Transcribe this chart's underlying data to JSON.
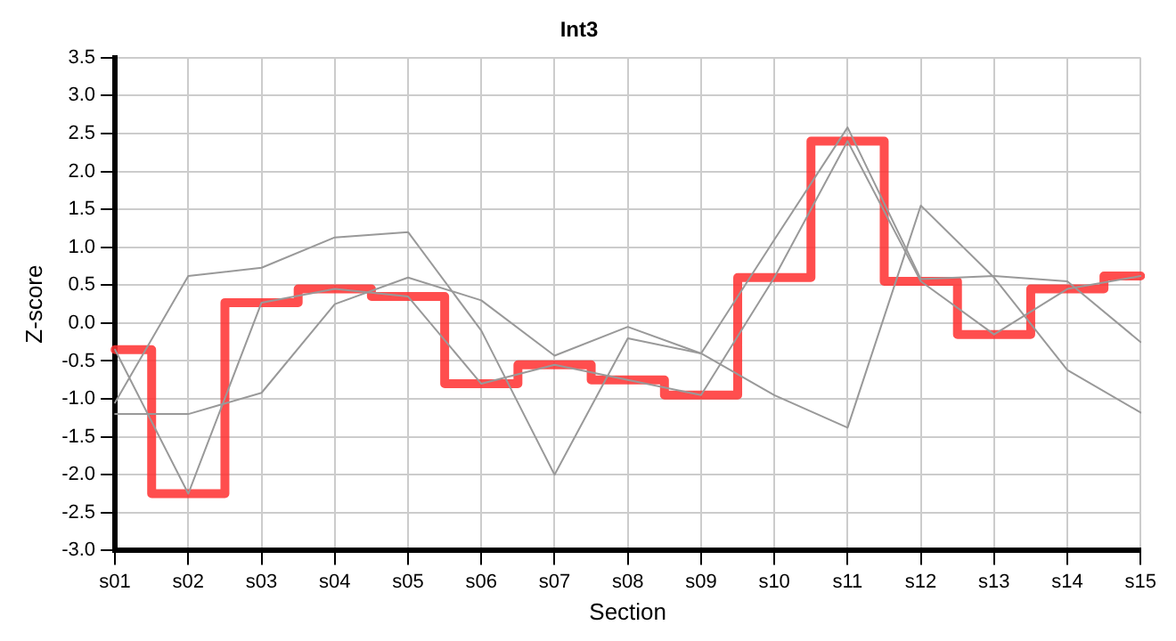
{
  "chart_data": {
    "type": "line",
    "title": "Int3",
    "xlabel": "Section",
    "ylabel": "Z-score",
    "categories": [
      "s01",
      "s02",
      "s03",
      "s04",
      "s05",
      "s06",
      "s07",
      "s08",
      "s09",
      "s10",
      "s11",
      "s12",
      "s13",
      "s14",
      "s15"
    ],
    "series": [
      {
        "color": "#999999",
        "values": [
          -1.2,
          -1.2,
          -0.92,
          0.25,
          0.6,
          0.3,
          -0.43,
          -0.05,
          -0.4,
          -0.95,
          -1.38,
          1.55,
          0.6,
          -0.62,
          -1.18
        ]
      },
      {
        "color": "#999999",
        "values": [
          -1.05,
          0.62,
          0.73,
          1.13,
          1.2,
          -0.1,
          -2.0,
          -0.2,
          -0.4,
          1.1,
          2.58,
          0.58,
          0.62,
          0.55,
          -0.25
        ]
      },
      {
        "color": "#999999",
        "values": [
          -0.35,
          -2.25,
          0.27,
          0.45,
          0.35,
          -0.8,
          -0.55,
          -0.75,
          -0.95,
          0.6,
          2.4,
          0.55,
          -0.15,
          0.45,
          0.62
        ]
      },
      {
        "type": "step",
        "color": "#ff3333",
        "values": [
          -0.35,
          -2.25,
          0.27,
          0.45,
          0.35,
          -0.8,
          -0.55,
          -0.75,
          -0.95,
          0.6,
          2.4,
          0.55,
          -0.15,
          0.45,
          0.62
        ]
      }
    ],
    "ylim": [
      -3,
      3.5
    ],
    "yticks": [
      {
        "value": -3,
        "label": "-3.0"
      },
      {
        "value": -2.5,
        "label": "-2.5"
      },
      {
        "value": -2,
        "label": "-2.0"
      },
      {
        "value": -1.5,
        "label": "-1.5"
      },
      {
        "value": -1,
        "label": "-1.0"
      },
      {
        "value": -0.5,
        "label": "-0.5"
      },
      {
        "value": 0,
        "label": "0.0"
      },
      {
        "value": 0.5,
        "label": "0.5"
      },
      {
        "value": 1,
        "label": "1.0"
      },
      {
        "value": 1.5,
        "label": "1.5"
      },
      {
        "value": 2,
        "label": "2.0"
      },
      {
        "value": 2.5,
        "label": "2.5"
      },
      {
        "value": 3,
        "label": "3.0"
      },
      {
        "value": 3.5,
        "label": "3.5"
      }
    ],
    "grid": true,
    "legend": false,
    "marker": "none",
    "line_style": "solid"
  }
}
